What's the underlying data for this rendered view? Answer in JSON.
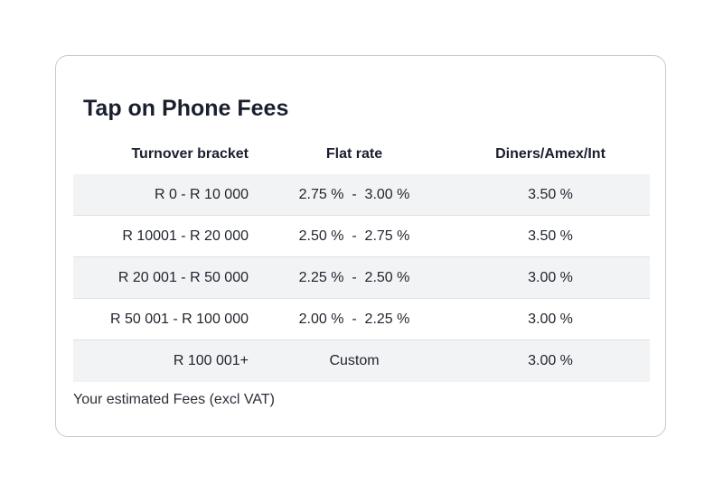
{
  "card": {
    "title": "Tap on Phone Fees",
    "note": "Your estimated Fees (excl VAT)"
  },
  "table": {
    "headers": [
      "Turnover bracket",
      "Flat rate",
      "Diners/Amex/Int"
    ],
    "rows": [
      [
        "R 0 - R 10 000",
        "2.75 %  -  3.00 %",
        "3.50 %"
      ],
      [
        "R 10001 - R 20 000",
        "2.50 %  -  2.75 %",
        "3.50 %"
      ],
      [
        "R 20 001 - R 50 000",
        "2.25 %  -  2.50 %",
        "3.00 %"
      ],
      [
        "R 50 001 - R 100 000",
        "2.00 %  -  2.25 %",
        "3.00 %"
      ],
      [
        "R 100 001+",
        "Custom",
        "3.00 %"
      ]
    ]
  },
  "colors": {
    "row_shade": "#f1f3f5",
    "border": "#c9c9c9",
    "text": "#1f242c"
  }
}
